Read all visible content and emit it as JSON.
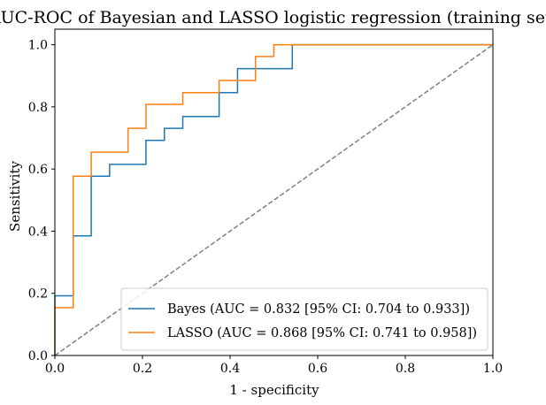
{
  "chart_data": {
    "type": "line",
    "title": "AUC-ROC of Bayesian and LASSO logistic regression (training set)",
    "xlabel": "1 - specificity",
    "ylabel": "Sensitivity",
    "xlim": [
      0,
      1
    ],
    "ylim": [
      0,
      1.05
    ],
    "xticks": [
      0.0,
      0.2,
      0.4,
      0.6,
      0.8,
      1.0
    ],
    "yticks": [
      0.0,
      0.2,
      0.4,
      0.6,
      0.8,
      1.0
    ],
    "xtick_labels": [
      "0.0",
      "0.2",
      "0.4",
      "0.6",
      "0.8",
      "1.0"
    ],
    "ytick_labels": [
      "0.0",
      "0.2",
      "0.4",
      "0.6",
      "0.8",
      "1.0"
    ],
    "grid": false,
    "legend_position": "lower-right",
    "series": [
      {
        "name": "Bayes (AUC = 0.832 [95% CI: 0.704 to 0.933])",
        "color": "#1f77b4",
        "style": "step",
        "x": [
          0,
          0,
          0.042,
          0.042,
          0.083,
          0.083,
          0.125,
          0.125,
          0.208,
          0.208,
          0.25,
          0.25,
          0.292,
          0.292,
          0.375,
          0.375,
          0.417,
          0.417,
          0.542,
          0.542,
          1.0
        ],
        "y": [
          0,
          0.192,
          0.192,
          0.385,
          0.385,
          0.577,
          0.577,
          0.615,
          0.615,
          0.692,
          0.692,
          0.731,
          0.731,
          0.769,
          0.769,
          0.846,
          0.846,
          0.923,
          0.923,
          1.0,
          1.0
        ]
      },
      {
        "name": "LASSO (AUC = 0.868 [95% CI: 0.741 to 0.958])",
        "color": "#ff7f0e",
        "style": "step",
        "x": [
          0,
          0,
          0.042,
          0.042,
          0.083,
          0.083,
          0.167,
          0.167,
          0.208,
          0.208,
          0.292,
          0.292,
          0.375,
          0.375,
          0.458,
          0.458,
          0.5,
          0.5,
          1.0
        ],
        "y": [
          0,
          0.154,
          0.154,
          0.577,
          0.577,
          0.654,
          0.654,
          0.731,
          0.731,
          0.808,
          0.808,
          0.846,
          0.846,
          0.885,
          0.885,
          0.962,
          0.962,
          1.0,
          1.0
        ]
      }
    ],
    "reference_line": {
      "x": [
        0,
        1
      ],
      "y": [
        0,
        1
      ],
      "color": "#808080",
      "style": "dashed"
    }
  }
}
